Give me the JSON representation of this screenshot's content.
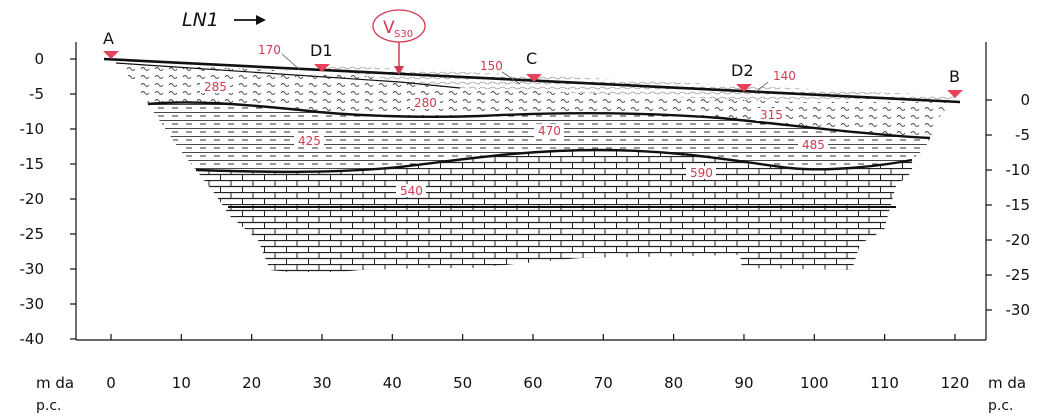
{
  "title": "LN1",
  "vs30_label": {
    "main": "V",
    "sub": "S30"
  },
  "points": {
    "A": "A",
    "B": "B",
    "C": "C",
    "D1": "D1",
    "D2": "D2"
  },
  "left_axis": {
    "ticks": [
      "0",
      "-5",
      "-10",
      "-15",
      "-20",
      "-25",
      "-30",
      "-40"
    ]
  },
  "right_axis": {
    "ticks": [
      "0",
      "-5",
      "-10",
      "-15",
      "-20",
      "-25",
      "-30"
    ]
  },
  "x_axis": {
    "ticks": [
      "0",
      "10",
      "20",
      "30",
      "40",
      "50",
      "60",
      "70",
      "80",
      "90",
      "100",
      "110",
      "120"
    ]
  },
  "unit_left": {
    "line1": "m da",
    "line2": "p.c."
  },
  "unit_right": {
    "line1": "m da",
    "line2": "p.c."
  },
  "velocities": {
    "v170": "170",
    "v150": "150",
    "v140": "140",
    "v285": "285",
    "v280": "280",
    "v315": "315",
    "v425": "425",
    "v470": "470",
    "v485": "485",
    "v540": "540",
    "v590": "590"
  },
  "colors": {
    "accent": "#d23a52",
    "ink": "#111111"
  }
}
